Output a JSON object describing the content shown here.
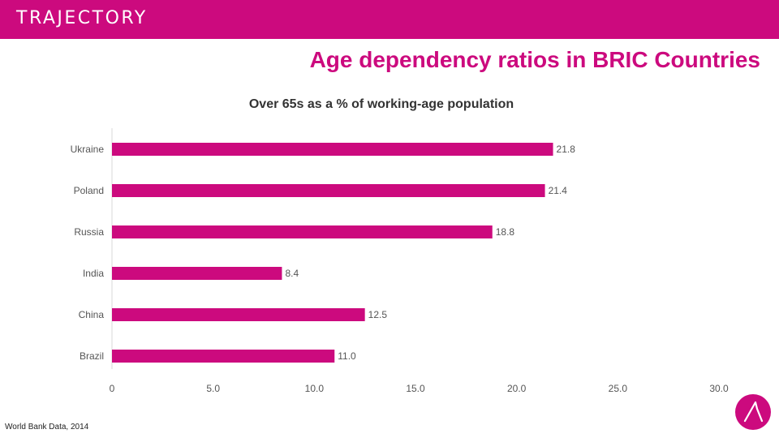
{
  "header": {
    "logo_text": "TRAJECTORY"
  },
  "title": "Age dependency ratios in BRIC Countries",
  "footer": {
    "source": "World Bank Data, 2014"
  },
  "colors": {
    "accent": "#cc0a7e"
  },
  "chart_data": {
    "type": "bar",
    "orientation": "horizontal",
    "title": "Over 65s as a % of working-age population",
    "categories": [
      "Ukraine",
      "Poland",
      "Russia",
      "India",
      "China",
      "Brazil"
    ],
    "values": [
      21.8,
      21.4,
      18.8,
      8.4,
      12.5,
      11.0
    ],
    "value_labels": [
      "21.8",
      "21.4",
      "18.8",
      "8.4",
      "12.5",
      "11.0"
    ],
    "xlim": [
      0,
      30
    ],
    "x_ticks": [
      0,
      5,
      10,
      15,
      20,
      25,
      30
    ],
    "x_tick_labels": [
      "0",
      "5.0",
      "10.0",
      "15.0",
      "20.0",
      "25.0",
      "30.0"
    ],
    "xlabel": "",
    "ylabel": "",
    "grid": false,
    "legend": "none"
  }
}
